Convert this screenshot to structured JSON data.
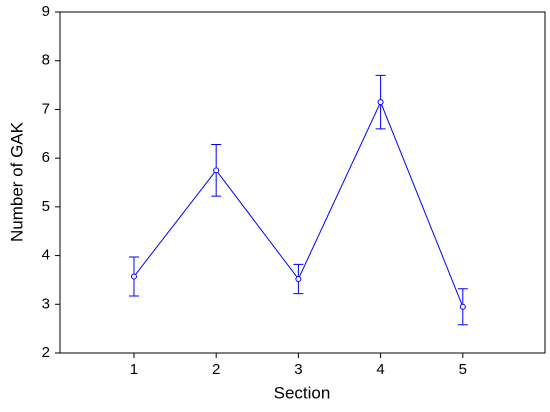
{
  "chart_data": {
    "type": "line",
    "x_label": "Section",
    "y_label": "Number of GAK",
    "x": [
      1,
      2,
      3,
      4,
      5
    ],
    "series": [
      {
        "color": "#0000ff",
        "values": [
          3.57,
          5.75,
          3.52,
          7.15,
          2.95
        ],
        "errors": [
          0.4,
          0.53,
          0.3,
          0.55,
          0.37
        ]
      }
    ],
    "xlim": [
      0.1,
      6
    ],
    "xticks": [
      1,
      2,
      3,
      4,
      5
    ],
    "ylim": [
      2,
      9
    ],
    "yticks": [
      2,
      3,
      4,
      5,
      6,
      7,
      8,
      9
    ],
    "grid": false
  }
}
